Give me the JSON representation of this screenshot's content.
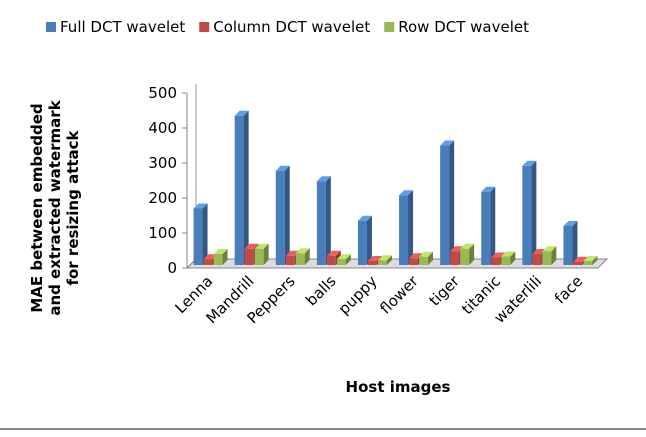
{
  "chart_data": {
    "type": "bar3d",
    "y_label": "MAE between embedded and extracted watermark for resizing attack",
    "x_label": "Host images",
    "categories": [
      "Lenna",
      "Mandrill",
      "Peppers",
      "balls",
      "puppy",
      "flower",
      "tiger",
      "titanic",
      "waterlili",
      "face"
    ],
    "series": [
      {
        "name": "Full DCT wavelet",
        "color": "#4a7ebb",
        "values": [
          170,
          435,
          278,
          248,
          135,
          208,
          350,
          218,
          292,
          120
        ]
      },
      {
        "name": "Column DCT wavelet",
        "color": "#be4b48",
        "values": [
          25,
          55,
          35,
          35,
          20,
          28,
          48,
          30,
          40,
          18
        ]
      },
      {
        "name": "Row DCT wavelet",
        "color": "#98b954",
        "values": [
          40,
          55,
          42,
          25,
          22,
          32,
          55,
          33,
          48,
          20
        ]
      }
    ],
    "ylim": [
      0,
      500
    ],
    "yticks": [
      0,
      100,
      200,
      300,
      400,
      500
    ],
    "grid": false,
    "legend": "top"
  }
}
